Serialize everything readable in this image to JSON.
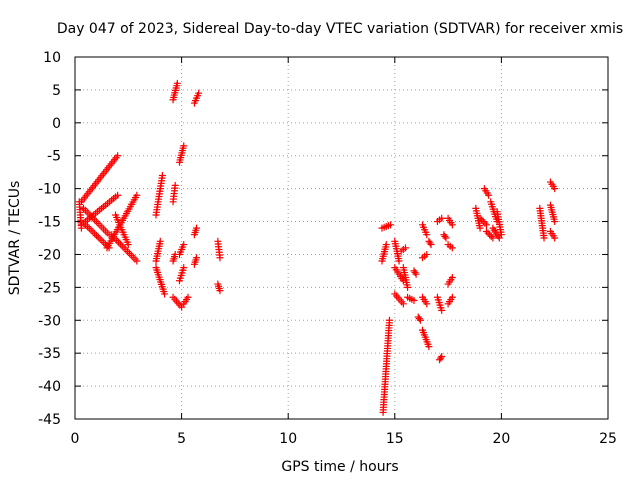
{
  "chart_data": {
    "type": "scatter",
    "title": "Day 047 of 2023, Sidereal Day-to-day VTEC variation (SDTVAR) for receiver xmis",
    "xlabel": "GPS time / hours",
    "ylabel": "SDTVAR / TECUs",
    "xlim": [
      0,
      25
    ],
    "ylim": [
      -45,
      10
    ],
    "xticks": [
      0,
      5,
      10,
      15,
      20,
      25
    ],
    "yticks": [
      10,
      5,
      0,
      -5,
      -10,
      -15,
      -20,
      -25,
      -30,
      -35,
      -40,
      -45
    ],
    "grid": true,
    "marker": "+",
    "color": "#ff0000",
    "segments": [
      {
        "x0": 0.3,
        "y0": -12,
        "x1": 2.0,
        "y1": -5
      },
      {
        "x0": 0.3,
        "y0": -15.5,
        "x1": 2.0,
        "y1": -11
      },
      {
        "x0": 0.4,
        "y0": -13,
        "x1": 1.6,
        "y1": -17
      },
      {
        "x0": 0.5,
        "y0": -15.5,
        "x1": 1.6,
        "y1": -19
      },
      {
        "x0": 1.5,
        "y0": -19,
        "x1": 2.9,
        "y1": -11
      },
      {
        "x0": 1.7,
        "y0": -17,
        "x1": 2.9,
        "y1": -21
      },
      {
        "x0": 1.9,
        "y0": -14,
        "x1": 2.5,
        "y1": -18.5
      },
      {
        "x0": 0.2,
        "y0": -12,
        "x1": 0.3,
        "y1": -16
      },
      {
        "x0": 3.8,
        "y0": -14,
        "x1": 4.1,
        "y1": -8
      },
      {
        "x0": 3.8,
        "y0": -21,
        "x1": 4.0,
        "y1": -18
      },
      {
        "x0": 3.8,
        "y0": -22,
        "x1": 4.2,
        "y1": -26
      },
      {
        "x0": 4.6,
        "y0": -12,
        "x1": 4.7,
        "y1": -9.5
      },
      {
        "x0": 4.6,
        "y0": -21,
        "x1": 4.7,
        "y1": -20
      },
      {
        "x0": 4.6,
        "y0": 3.5,
        "x1": 4.8,
        "y1": 6
      },
      {
        "x0": 4.6,
        "y0": -26.5,
        "x1": 5.0,
        "y1": -28
      },
      {
        "x0": 4.9,
        "y0": -6,
        "x1": 5.1,
        "y1": -3.5
      },
      {
        "x0": 4.9,
        "y0": -20,
        "x1": 5.1,
        "y1": -18.5
      },
      {
        "x0": 4.9,
        "y0": -24,
        "x1": 5.1,
        "y1": -22
      },
      {
        "x0": 5.1,
        "y0": -27.5,
        "x1": 5.3,
        "y1": -26.5
      },
      {
        "x0": 5.6,
        "y0": 3,
        "x1": 5.8,
        "y1": 4.5
      },
      {
        "x0": 5.6,
        "y0": -17,
        "x1": 5.7,
        "y1": -16
      },
      {
        "x0": 5.6,
        "y0": -21.5,
        "x1": 5.7,
        "y1": -20.5
      },
      {
        "x0": 6.7,
        "y0": -18,
        "x1": 6.8,
        "y1": -20.5
      },
      {
        "x0": 6.7,
        "y0": -24.5,
        "x1": 6.8,
        "y1": -25.5
      },
      {
        "x0": 14.45,
        "y0": -44,
        "x1": 14.75,
        "y1": -30
      },
      {
        "x0": 14.4,
        "y0": -21,
        "x1": 14.6,
        "y1": -18.5
      },
      {
        "x0": 14.4,
        "y0": -16,
        "x1": 14.8,
        "y1": -15.5
      },
      {
        "x0": 15.0,
        "y0": -18,
        "x1": 15.2,
        "y1": -21
      },
      {
        "x0": 15.0,
        "y0": -22,
        "x1": 15.4,
        "y1": -24
      },
      {
        "x0": 15.0,
        "y0": -26,
        "x1": 15.4,
        "y1": -27.5
      },
      {
        "x0": 15.4,
        "y0": -22,
        "x1": 15.6,
        "y1": -25
      },
      {
        "x0": 15.3,
        "y0": -19.5,
        "x1": 15.5,
        "y1": -19
      },
      {
        "x0": 15.6,
        "y0": -26.5,
        "x1": 15.9,
        "y1": -27
      },
      {
        "x0": 15.9,
        "y0": -22.5,
        "x1": 16.0,
        "y1": -23
      },
      {
        "x0": 16.1,
        "y0": -29.5,
        "x1": 16.2,
        "y1": -30
      },
      {
        "x0": 16.3,
        "y0": -15.5,
        "x1": 16.5,
        "y1": -17
      },
      {
        "x0": 16.3,
        "y0": -20.5,
        "x1": 16.5,
        "y1": -20
      },
      {
        "x0": 16.3,
        "y0": -26.5,
        "x1": 16.5,
        "y1": -27.5
      },
      {
        "x0": 16.3,
        "y0": -31.5,
        "x1": 16.6,
        "y1": -34
      },
      {
        "x0": 16.6,
        "y0": -18,
        "x1": 16.7,
        "y1": -18.5
      },
      {
        "x0": 17.0,
        "y0": -15,
        "x1": 17.2,
        "y1": -14.5
      },
      {
        "x0": 17.0,
        "y0": -26.5,
        "x1": 17.2,
        "y1": -28.5
      },
      {
        "x0": 17.1,
        "y0": -36,
        "x1": 17.2,
        "y1": -35.5
      },
      {
        "x0": 17.3,
        "y0": -17,
        "x1": 17.4,
        "y1": -17.5
      },
      {
        "x0": 17.5,
        "y0": -14.5,
        "x1": 17.7,
        "y1": -15.5
      },
      {
        "x0": 17.5,
        "y0": -18.5,
        "x1": 17.7,
        "y1": -19
      },
      {
        "x0": 17.5,
        "y0": -24.5,
        "x1": 17.7,
        "y1": -23.5
      },
      {
        "x0": 17.5,
        "y0": -27.5,
        "x1": 17.7,
        "y1": -26.5
      },
      {
        "x0": 18.8,
        "y0": -13,
        "x1": 19.0,
        "y1": -16
      },
      {
        "x0": 19.0,
        "y0": -14.5,
        "x1": 19.3,
        "y1": -15.5
      },
      {
        "x0": 19.2,
        "y0": -10,
        "x1": 19.4,
        "y1": -11
      },
      {
        "x0": 19.3,
        "y0": -16.5,
        "x1": 19.6,
        "y1": -17.5
      },
      {
        "x0": 19.5,
        "y0": -12,
        "x1": 19.8,
        "y1": -15
      },
      {
        "x0": 19.6,
        "y0": -16,
        "x1": 19.9,
        "y1": -17.5
      },
      {
        "x0": 19.8,
        "y0": -13.5,
        "x1": 20.0,
        "y1": -17
      },
      {
        "x0": 21.8,
        "y0": -13,
        "x1": 22.0,
        "y1": -17.5
      },
      {
        "x0": 22.3,
        "y0": -9,
        "x1": 22.5,
        "y1": -10
      },
      {
        "x0": 22.3,
        "y0": -12.5,
        "x1": 22.5,
        "y1": -15
      },
      {
        "x0": 22.3,
        "y0": -16.5,
        "x1": 22.5,
        "y1": -17.5
      }
    ]
  }
}
